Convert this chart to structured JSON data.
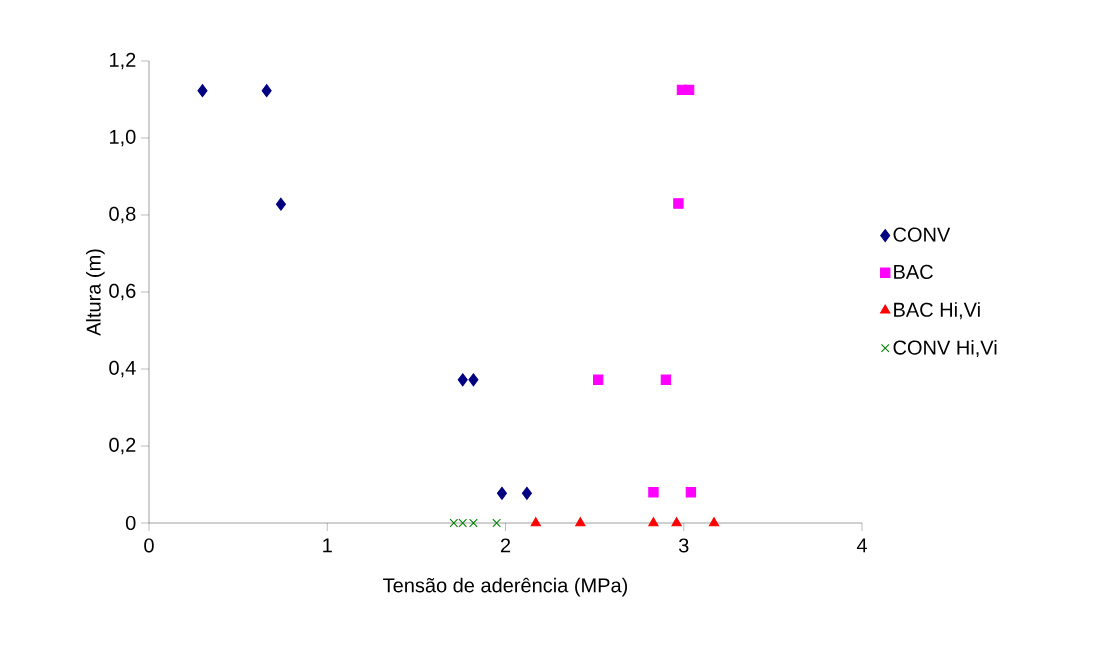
{
  "chart_data": {
    "type": "scatter",
    "xlabel": "Tensão de aderência (MPa)",
    "ylabel": "Altura (m)",
    "xlim": [
      0,
      4
    ],
    "ylim": [
      0,
      1.2
    ],
    "xticks": [
      0,
      1,
      2,
      3,
      4
    ],
    "yticks": [
      0,
      {
        "value": 0.2,
        "label": "0,2"
      },
      {
        "value": 0.4,
        "label": "0,4"
      },
      {
        "value": 0.6,
        "label": "0,6"
      },
      {
        "value": 0.8,
        "label": "0,8"
      },
      {
        "value": 1.0,
        "label": "1,0"
      },
      {
        "value": 1.2,
        "label": "1,2"
      }
    ],
    "grid": false,
    "legend": "right",
    "series": [
      {
        "name": "CONV",
        "color": "#000080",
        "marker": "diamond",
        "x": [
          0.3,
          0.66,
          0.74,
          1.76,
          1.82,
          1.98,
          2.12
        ],
        "values": [
          1.123,
          1.123,
          0.828,
          0.372,
          0.372,
          0.077,
          0.077
        ]
      },
      {
        "name": "BAC",
        "color": "#ff00ff",
        "marker": "square",
        "x": [
          2.99,
          3.03,
          2.97,
          2.52,
          2.9,
          2.83,
          3.04
        ],
        "values": [
          1.125,
          1.125,
          0.83,
          0.372,
          0.372,
          0.08,
          0.08
        ]
      },
      {
        "name": "BAC Hi,Vi",
        "color": "#ff0000",
        "marker": "triangle",
        "x": [
          2.17,
          2.42,
          2.83,
          2.96,
          3.17
        ],
        "values": [
          0,
          0,
          0,
          0,
          0
        ]
      },
      {
        "name": "CONV Hi,Vi",
        "color": "#008000",
        "marker": "cross",
        "x": [
          1.71,
          1.76,
          1.82,
          1.95
        ],
        "values": [
          0,
          0,
          0,
          0
        ]
      }
    ]
  }
}
